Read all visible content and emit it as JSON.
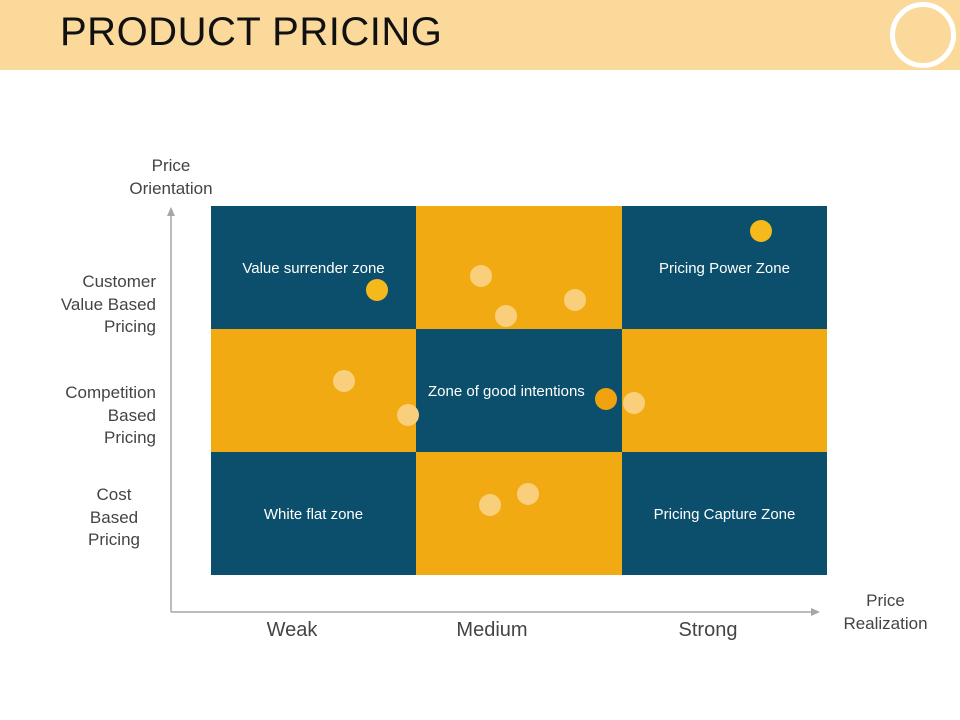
{
  "title": "PRODUCT PRICING",
  "colors": {
    "header_bg": "#fad99a",
    "dark_cell": "#0b4f6c",
    "gold_cell": "#f2aa12",
    "dot_light": "#f9cf7c",
    "dot_bright": "#f5b91c",
    "dot_accent": "#f0a30e"
  },
  "axes": {
    "y_label_line1": "Price",
    "y_label_line2": "Orientation",
    "x_label_line1": "Price",
    "x_label_line2": "Realization"
  },
  "rows": [
    {
      "line1": "Customer",
      "line2": "Value Based",
      "line3": "Pricing"
    },
    {
      "line1": "Competition",
      "line2": "Based",
      "line3": "Pricing"
    },
    {
      "line1": "Cost",
      "line2": "Based",
      "line3": "Pricing"
    }
  ],
  "columns": [
    "Weak",
    "Medium",
    "Strong"
  ],
  "zones": {
    "value_surrender": "Value surrender zone",
    "pricing_power": "Pricing Power Zone",
    "good_intentions": "Zone of good intentions",
    "white_flat": "White flat zone",
    "pricing_capture": "Pricing Capture Zone"
  }
}
